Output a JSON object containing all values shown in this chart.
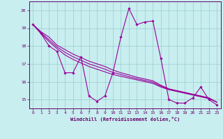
{
  "xlabel": "Windchill (Refroidissement éolien,°C)",
  "bg_color": "#c8eef0",
  "line_color": "#990099",
  "grid_color": "#99cccc",
  "axis_color": "#660066",
  "x_data": [
    0,
    1,
    2,
    3,
    4,
    5,
    6,
    7,
    8,
    9,
    10,
    11,
    12,
    13,
    14,
    15,
    16,
    17,
    18,
    19,
    20,
    21,
    22,
    23
  ],
  "y_main": [
    19.2,
    18.7,
    18.0,
    17.7,
    16.5,
    16.5,
    17.4,
    15.2,
    14.9,
    15.2,
    16.5,
    18.5,
    20.1,
    19.2,
    19.35,
    19.4,
    17.3,
    15.0,
    14.8,
    14.8,
    15.1,
    15.7,
    15.0,
    14.7
  ],
  "y_reg1": [
    19.2,
    18.8,
    18.5,
    18.05,
    17.8,
    17.55,
    17.35,
    17.15,
    17.0,
    16.85,
    16.65,
    16.5,
    16.38,
    16.25,
    16.15,
    16.05,
    15.8,
    15.6,
    15.5,
    15.4,
    15.3,
    15.2,
    15.1,
    14.85
  ],
  "y_reg2": [
    19.2,
    18.7,
    18.25,
    17.85,
    17.5,
    17.25,
    17.05,
    16.85,
    16.7,
    16.55,
    16.4,
    16.3,
    16.2,
    16.1,
    16.0,
    15.9,
    15.7,
    15.55,
    15.45,
    15.35,
    15.25,
    15.15,
    15.05,
    14.85
  ],
  "y_reg3": [
    19.2,
    18.75,
    18.35,
    17.95,
    17.65,
    17.4,
    17.2,
    17.0,
    16.85,
    16.7,
    16.52,
    16.4,
    16.28,
    16.17,
    16.07,
    15.97,
    15.75,
    15.57,
    15.47,
    15.38,
    15.28,
    15.18,
    15.07,
    14.85
  ],
  "xlim": [
    -0.5,
    23.5
  ],
  "ylim": [
    14.5,
    20.5
  ],
  "yticks": [
    15,
    16,
    17,
    18,
    19,
    20
  ],
  "xticks": [
    0,
    1,
    2,
    3,
    4,
    5,
    6,
    7,
    8,
    9,
    10,
    11,
    12,
    13,
    14,
    15,
    16,
    17,
    18,
    19,
    20,
    21,
    22,
    23
  ]
}
